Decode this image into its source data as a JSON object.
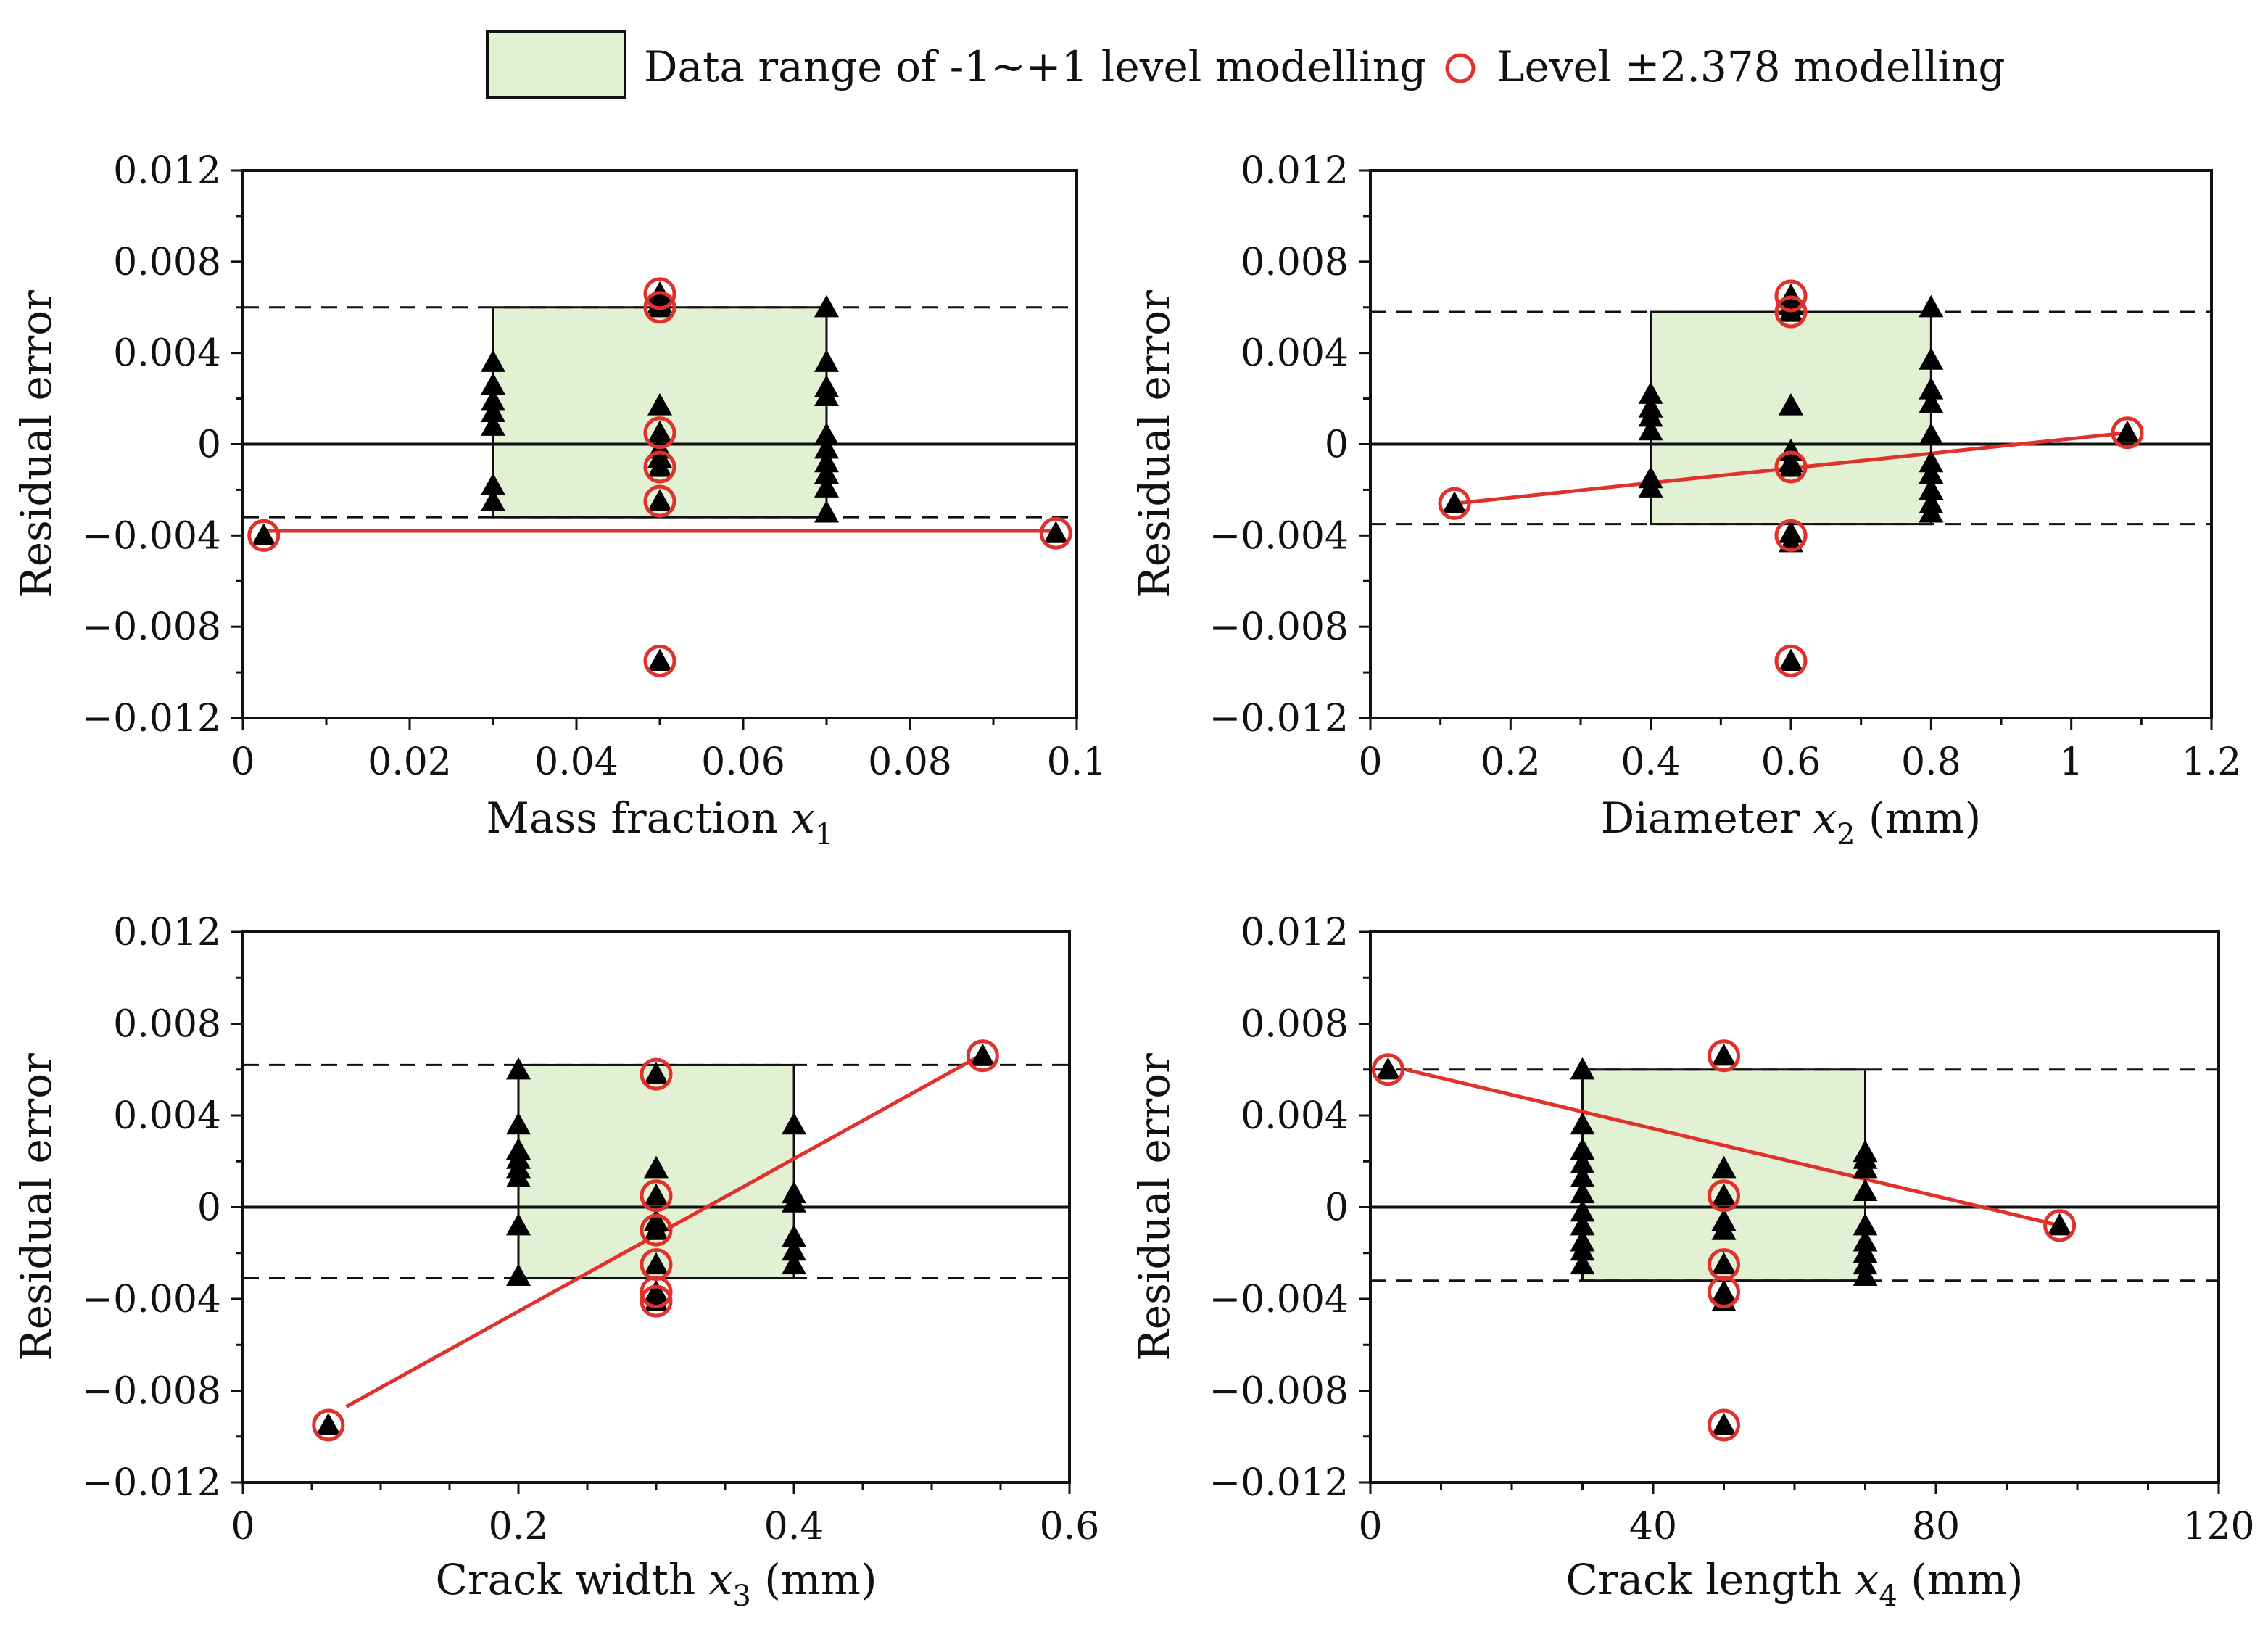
{
  "legend": {
    "box_label": "Data range of -1~+1 level modelling",
    "circle_label": "Level  ±2.378 modelling"
  },
  "colors": {
    "box_fill": "#e2f0d4",
    "circle": "#e0312a",
    "fit_line": "#e0312a",
    "marker": "#000000"
  },
  "chart_data": [
    {
      "type": "scatter",
      "id": "x1",
      "xlabel": {
        "pre": "Mass  fraction ",
        "var": "x",
        "sub": "1",
        "post": ""
      },
      "ylabel": "Residual error",
      "xlim": [
        0,
        0.1
      ],
      "ylim": [
        -0.012,
        0.012
      ],
      "x_ticks": [
        0,
        0.02,
        0.04,
        0.06,
        0.08,
        0.1
      ],
      "x_tick_labels": [
        "0",
        "0.02",
        "0.04",
        "0.06",
        "0.08",
        "0.1"
      ],
      "x_minor": 0.01,
      "y_ticks": [
        0.012,
        0.008,
        0.004,
        0,
        -0.004,
        -0.008,
        -0.012
      ],
      "y_tick_labels": [
        "0.012",
        "0.008",
        "0.004",
        "0",
        "−0.004",
        "−0.008",
        "−0.012"
      ],
      "y_minor": 0.002,
      "dashed_lines": [
        0.006,
        -0.0032
      ],
      "box": {
        "x0": 0.03,
        "x1": 0.07,
        "y0": -0.0032,
        "y1": 0.006
      },
      "triangles": [
        [
          0.03,
          0.0036
        ],
        [
          0.03,
          0.0026
        ],
        [
          0.03,
          0.0019
        ],
        [
          0.03,
          0.0014
        ],
        [
          0.03,
          0.0008
        ],
        [
          0.03,
          -0.0018
        ],
        [
          0.03,
          -0.0025
        ],
        [
          0.05,
          0.0066
        ],
        [
          0.05,
          0.0062
        ],
        [
          0.05,
          0.006
        ],
        [
          0.05,
          0.0017
        ],
        [
          0.05,
          0.0005
        ],
        [
          0.05,
          -0.0002
        ],
        [
          0.05,
          -0.0006
        ],
        [
          0.05,
          -0.001
        ],
        [
          0.05,
          -0.0025
        ],
        [
          0.05,
          -0.0095
        ],
        [
          0.07,
          0.006
        ],
        [
          0.07,
          0.0036
        ],
        [
          0.07,
          0.0025
        ],
        [
          0.07,
          0.0021
        ],
        [
          0.07,
          0.0004
        ],
        [
          0.07,
          -0.0002
        ],
        [
          0.07,
          -0.0008
        ],
        [
          0.07,
          -0.0013
        ],
        [
          0.07,
          -0.0019
        ],
        [
          0.07,
          -0.003
        ],
        [
          0.0025,
          -0.004
        ],
        [
          0.0975,
          -0.0039
        ]
      ],
      "circles": [
        [
          0.05,
          0.0066
        ],
        [
          0.05,
          0.006
        ],
        [
          0.05,
          0.0005
        ],
        [
          0.05,
          -0.001
        ],
        [
          0.05,
          -0.0025
        ],
        [
          0.05,
          -0.0095
        ],
        [
          0.0025,
          -0.004
        ],
        [
          0.0975,
          -0.0039
        ]
      ],
      "fit_line": [
        [
          0.0025,
          -0.0038
        ],
        [
          0.0975,
          -0.0038
        ]
      ]
    },
    {
      "type": "scatter",
      "id": "x2",
      "xlabel": {
        "pre": "Diameter  ",
        "var": "x",
        "sub": "2",
        "post": " (mm)"
      },
      "ylabel": "Residual error",
      "xlim": [
        0,
        1.2
      ],
      "ylim": [
        -0.012,
        0.012
      ],
      "x_ticks": [
        0,
        0.2,
        0.4,
        0.6,
        0.8,
        1,
        1.2
      ],
      "x_tick_labels": [
        "0",
        "0.2",
        "0.4",
        "0.6",
        "0.8",
        "1",
        "1.2"
      ],
      "x_minor": 0.1,
      "y_ticks": [
        0.012,
        0.008,
        0.004,
        0,
        -0.004,
        -0.008,
        -0.012
      ],
      "y_tick_labels": [
        "0.012",
        "0.008",
        "0.004",
        "0",
        "−0.004",
        "−0.008",
        "−0.012"
      ],
      "y_minor": 0.002,
      "dashed_lines": [
        0.0058,
        -0.0035
      ],
      "box": {
        "x0": 0.4,
        "x1": 0.8,
        "y0": -0.0035,
        "y1": 0.0058
      },
      "triangles": [
        [
          0.4,
          0.0022
        ],
        [
          0.4,
          0.0016
        ],
        [
          0.4,
          0.0012
        ],
        [
          0.4,
          0.0006
        ],
        [
          0.4,
          -0.0015
        ],
        [
          0.4,
          -0.0019
        ],
        [
          0.6,
          0.0065
        ],
        [
          0.6,
          0.0061
        ],
        [
          0.6,
          0.0058
        ],
        [
          0.6,
          0.0017
        ],
        [
          0.6,
          -0.0003
        ],
        [
          0.6,
          -0.0008
        ],
        [
          0.6,
          -0.001
        ],
        [
          0.6,
          -0.0039
        ],
        [
          0.6,
          -0.0043
        ],
        [
          0.6,
          -0.0095
        ],
        [
          0.8,
          0.006
        ],
        [
          0.8,
          0.0037
        ],
        [
          0.8,
          0.0024
        ],
        [
          0.8,
          0.0018
        ],
        [
          0.8,
          0.0004
        ],
        [
          0.8,
          -0.0008
        ],
        [
          0.8,
          -0.0013
        ],
        [
          0.8,
          -0.002
        ],
        [
          0.8,
          -0.0026
        ],
        [
          0.8,
          -0.003
        ],
        [
          0.12,
          -0.0026
        ],
        [
          1.08,
          0.0005
        ]
      ],
      "circles": [
        [
          0.6,
          0.0065
        ],
        [
          0.6,
          0.0058
        ],
        [
          0.6,
          -0.001
        ],
        [
          0.6,
          -0.004
        ],
        [
          0.6,
          -0.0095
        ],
        [
          0.12,
          -0.0026
        ],
        [
          1.08,
          0.0005
        ]
      ],
      "fit_line": [
        [
          0.12,
          -0.0026
        ],
        [
          1.08,
          0.0005
        ]
      ]
    },
    {
      "type": "scatter",
      "id": "x3",
      "xlabel": {
        "pre": "Crack width ",
        "var": "x",
        "sub": "3",
        "post": " (mm)"
      },
      "ylabel": "Residual error",
      "xlim": [
        0,
        0.6
      ],
      "ylim": [
        -0.012,
        0.012
      ],
      "x_ticks": [
        0,
        0.2,
        0.4,
        0.6
      ],
      "x_tick_labels": [
        "0",
        "0.2",
        "0.4",
        "0.6"
      ],
      "x_minor": 0.05,
      "y_ticks": [
        0.012,
        0.008,
        0.004,
        0,
        -0.004,
        -0.008,
        -0.012
      ],
      "y_tick_labels": [
        "0.012",
        "0.008",
        "0.004",
        "0",
        "−0.004",
        "−0.008",
        "−0.012"
      ],
      "y_minor": 0.002,
      "dashed_lines": [
        0.0062,
        -0.0031
      ],
      "box": {
        "x0": 0.2,
        "x1": 0.4,
        "y0": -0.0031,
        "y1": 0.0062
      },
      "triangles": [
        [
          0.2,
          0.006
        ],
        [
          0.2,
          0.0036
        ],
        [
          0.2,
          0.0025
        ],
        [
          0.2,
          0.0021
        ],
        [
          0.2,
          0.0017
        ],
        [
          0.2,
          0.0013
        ],
        [
          0.2,
          -0.0008
        ],
        [
          0.2,
          -0.003
        ],
        [
          0.3,
          0.0058
        ],
        [
          0.3,
          0.0017
        ],
        [
          0.3,
          0.0005
        ],
        [
          0.3,
          -0.0006
        ],
        [
          0.3,
          -0.001
        ],
        [
          0.3,
          -0.0025
        ],
        [
          0.3,
          -0.0037
        ],
        [
          0.3,
          -0.0041
        ],
        [
          0.4,
          0.0036
        ],
        [
          0.4,
          0.0006
        ],
        [
          0.4,
          0.0002
        ],
        [
          0.4,
          -0.0013
        ],
        [
          0.4,
          -0.0019
        ],
        [
          0.4,
          -0.0025
        ],
        [
          0.062,
          -0.0095
        ],
        [
          0.537,
          0.0066
        ]
      ],
      "circles": [
        [
          0.3,
          0.0058
        ],
        [
          0.3,
          0.0005
        ],
        [
          0.3,
          -0.001
        ],
        [
          0.3,
          -0.0025
        ],
        [
          0.3,
          -0.0037
        ],
        [
          0.3,
          -0.0041
        ],
        [
          0.062,
          -0.0095
        ],
        [
          0.537,
          0.0066
        ]
      ],
      "fit_line": [
        [
          0.075,
          -0.0087
        ],
        [
          0.535,
          0.0066
        ]
      ]
    },
    {
      "type": "scatter",
      "id": "x4",
      "xlabel": {
        "pre": "Crack length ",
        "var": "x",
        "sub": "4",
        "post": "  (mm)"
      },
      "ylabel": "Residual error",
      "xlim": [
        0,
        120
      ],
      "ylim": [
        -0.012,
        0.012
      ],
      "x_ticks": [
        0,
        40,
        80,
        120
      ],
      "x_tick_labels": [
        "0",
        "40",
        "80",
        "120"
      ],
      "x_minor": 10,
      "y_ticks": [
        0.012,
        0.008,
        0.004,
        0,
        -0.004,
        -0.008,
        -0.012
      ],
      "y_tick_labels": [
        "0.012",
        "0.008",
        "0.004",
        "0",
        "−0.004",
        "−0.008",
        "−0.012"
      ],
      "y_minor": 0.002,
      "dashed_lines": [
        0.006,
        -0.0032
      ],
      "box": {
        "x0": 30,
        "x1": 70,
        "y0": -0.0032,
        "y1": 0.006
      },
      "triangles": [
        [
          30,
          0.006
        ],
        [
          30,
          0.0036
        ],
        [
          30,
          0.0025
        ],
        [
          30,
          0.0019
        ],
        [
          30,
          0.0013
        ],
        [
          30,
          0.0006
        ],
        [
          30,
          -0.0002
        ],
        [
          30,
          -0.0008
        ],
        [
          30,
          -0.0015
        ],
        [
          30,
          -0.0019
        ],
        [
          30,
          -0.0025
        ],
        [
          50,
          0.0066
        ],
        [
          50,
          0.0017
        ],
        [
          50,
          0.0005
        ],
        [
          50,
          -0.0006
        ],
        [
          50,
          -0.001
        ],
        [
          50,
          -0.0025
        ],
        [
          50,
          -0.0037
        ],
        [
          50,
          -0.0041
        ],
        [
          50,
          -0.0095
        ],
        [
          70,
          0.0024
        ],
        [
          70,
          0.0021
        ],
        [
          70,
          0.0017
        ],
        [
          70,
          0.0007
        ],
        [
          70,
          -0.0008
        ],
        [
          70,
          -0.0015
        ],
        [
          70,
          -0.002
        ],
        [
          70,
          -0.0025
        ],
        [
          70,
          -0.003
        ],
        [
          2.5,
          0.006
        ],
        [
          97.5,
          -0.0008
        ]
      ],
      "circles": [
        [
          50,
          0.0066
        ],
        [
          50,
          0.0005
        ],
        [
          50,
          -0.0025
        ],
        [
          50,
          -0.0037
        ],
        [
          50,
          -0.0095
        ],
        [
          2.5,
          0.006
        ],
        [
          97.5,
          -0.0008
        ]
      ],
      "fit_line": [
        [
          5,
          0.006
        ],
        [
          97.5,
          -0.0008
        ]
      ]
    }
  ]
}
